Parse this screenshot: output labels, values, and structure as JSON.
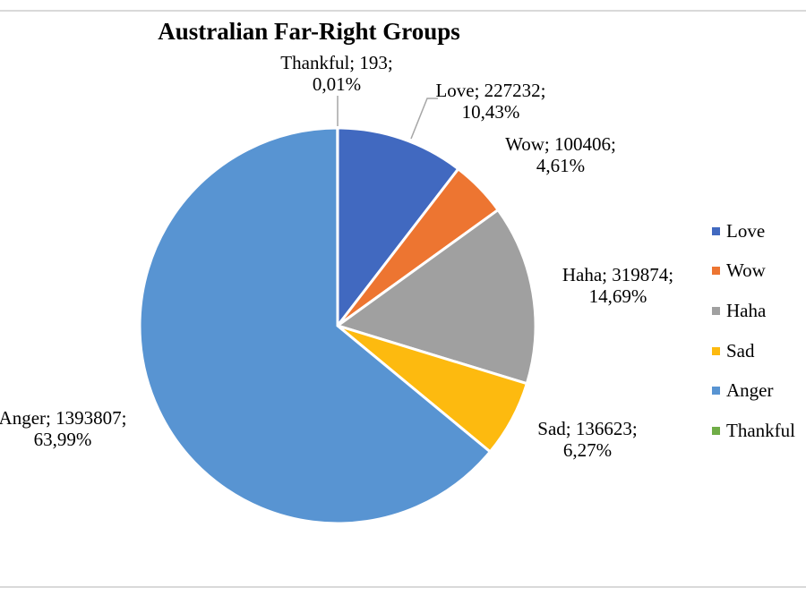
{
  "chart_data": {
    "type": "pie",
    "title": "Australian Far-Right Groups",
    "slices": [
      {
        "name": "Love",
        "value": 227232,
        "percent_label": "10,43%",
        "color": "#4169C0"
      },
      {
        "name": "Wow",
        "value": 100406,
        "percent_label": "4,61%",
        "color": "#ED7531"
      },
      {
        "name": "Haha",
        "value": 319874,
        "percent_label": "14,69%",
        "color": "#A0A0A0"
      },
      {
        "name": "Sad",
        "value": 136623,
        "percent_label": "6,27%",
        "color": "#FDBA0F"
      },
      {
        "name": "Anger",
        "value": 1393807,
        "percent_label": "63,99%",
        "color": "#5894D2"
      },
      {
        "name": "Thankful",
        "value": 193,
        "percent_label": "0,01%",
        "color": "#70AD47"
      }
    ],
    "legend_position": "right"
  }
}
